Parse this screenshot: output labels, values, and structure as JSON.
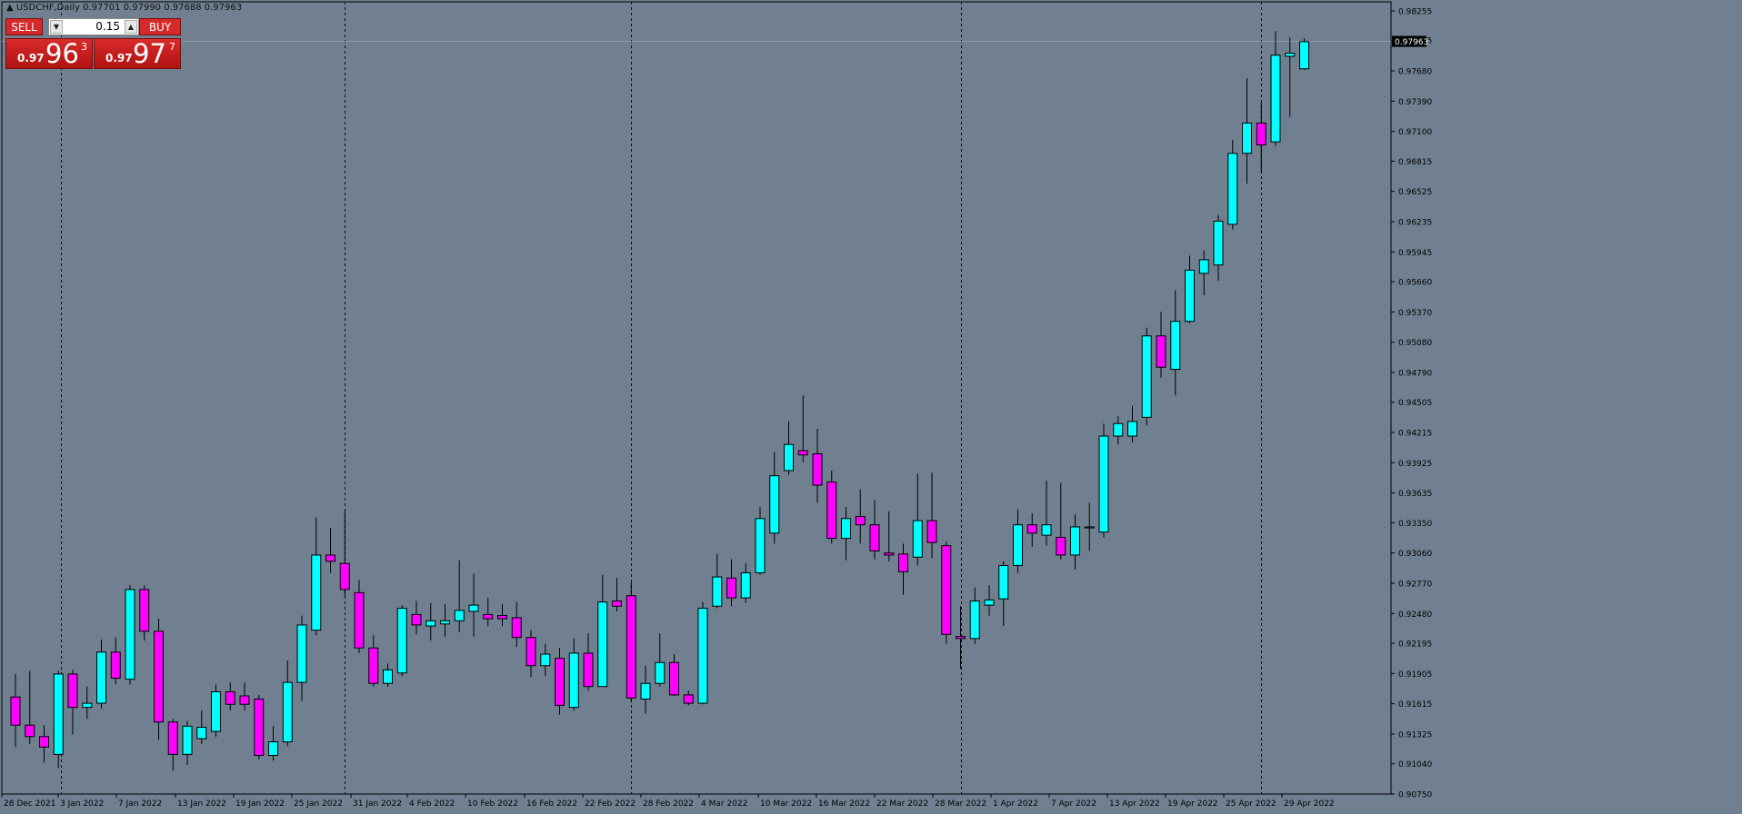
{
  "symbol_header": "USDCHF,Daily  0.97701 0.97990 0.97688 0.97963",
  "trade_panel": {
    "sell_label": "SELL",
    "buy_label": "BUY",
    "lot_value": "0.15",
    "sell_price": {
      "small": "0.97",
      "big": "96",
      "sup": "3"
    },
    "buy_price": {
      "small": "0.97",
      "big": "97",
      "sup": "7"
    }
  },
  "colors": {
    "background": "#708090",
    "bull_candle": "#00ffff",
    "bear_candle": "#ff00ff",
    "wick": "#000000",
    "current_price_label_bg": "#000000"
  },
  "chart_data": {
    "type": "candlestick",
    "ylim": [
      0.9075,
      0.98255
    ],
    "y_ticks": [
      "0.98255",
      "0.97975",
      "0.97680",
      "0.97390",
      "0.97100",
      "0.96815",
      "0.96525",
      "0.96235",
      "0.95945",
      "0.95660",
      "0.95370",
      "0.95080",
      "0.94790",
      "0.94505",
      "0.94215",
      "0.93925",
      "0.93635",
      "0.93350",
      "0.93060",
      "0.92770",
      "0.92480",
      "0.92195",
      "0.91905",
      "0.91615",
      "0.91325",
      "0.91040",
      "0.90750"
    ],
    "current_price": "0.97963",
    "x_labels": [
      "28 Dec 2021",
      "3 Jan 2022",
      "7 Jan 2022",
      "13 Jan 2022",
      "19 Jan 2022",
      "25 Jan 2022",
      "31 Jan 2022",
      "4 Feb 2022",
      "10 Feb 2022",
      "16 Feb 2022",
      "22 Feb 2022",
      "28 Feb 2022",
      "4 Mar 2022",
      "10 Mar 2022",
      "16 Mar 2022",
      "22 Mar 2022",
      "28 Mar 2022",
      "1 Apr 2022",
      "7 Apr 2022",
      "13 Apr 2022",
      "19 Apr 2022",
      "25 Apr 2022",
      "29 Apr 2022"
    ],
    "period_separators": [
      "3 Jan 2022",
      "31 Jan 2022",
      "28 Feb 2022",
      "1 Apr 2022",
      "29 Apr 2022"
    ],
    "candles": [
      {
        "o": 0.9168,
        "h": 0.919,
        "l": 0.912,
        "c": 0.9141
      },
      {
        "o": 0.9141,
        "h": 0.9193,
        "l": 0.9123,
        "c": 0.913
      },
      {
        "o": 0.913,
        "h": 0.9141,
        "l": 0.9105,
        "c": 0.912
      },
      {
        "o": 0.9113,
        "h": 0.9193,
        "l": 0.91,
        "c": 0.919
      },
      {
        "o": 0.919,
        "h": 0.9194,
        "l": 0.9132,
        "c": 0.9158
      },
      {
        "o": 0.9158,
        "h": 0.9178,
        "l": 0.9147,
        "c": 0.9162
      },
      {
        "o": 0.9162,
        "h": 0.9223,
        "l": 0.9157,
        "c": 0.9211
      },
      {
        "o": 0.9211,
        "h": 0.9225,
        "l": 0.918,
        "c": 0.9186
      },
      {
        "o": 0.9185,
        "h": 0.9275,
        "l": 0.918,
        "c": 0.9271
      },
      {
        "o": 0.9271,
        "h": 0.9275,
        "l": 0.9222,
        "c": 0.9231
      },
      {
        "o": 0.9231,
        "h": 0.9243,
        "l": 0.9127,
        "c": 0.9144
      },
      {
        "o": 0.9144,
        "h": 0.9147,
        "l": 0.9097,
        "c": 0.9113
      },
      {
        "o": 0.9113,
        "h": 0.9145,
        "l": 0.9103,
        "c": 0.914
      },
      {
        "o": 0.9128,
        "h": 0.9155,
        "l": 0.9123,
        "c": 0.9139
      },
      {
        "o": 0.9135,
        "h": 0.918,
        "l": 0.913,
        "c": 0.9173
      },
      {
        "o": 0.9173,
        "h": 0.9182,
        "l": 0.9155,
        "c": 0.9161
      },
      {
        "o": 0.9169,
        "h": 0.9182,
        "l": 0.9155,
        "c": 0.9161
      },
      {
        "o": 0.9166,
        "h": 0.917,
        "l": 0.9108,
        "c": 0.9112
      },
      {
        "o": 0.9112,
        "h": 0.914,
        "l": 0.9107,
        "c": 0.9125
      },
      {
        "o": 0.9125,
        "h": 0.9203,
        "l": 0.9121,
        "c": 0.9182
      },
      {
        "o": 0.9182,
        "h": 0.9246,
        "l": 0.9164,
        "c": 0.9237
      },
      {
        "o": 0.9232,
        "h": 0.934,
        "l": 0.9227,
        "c": 0.9304
      },
      {
        "o": 0.9304,
        "h": 0.933,
        "l": 0.9287,
        "c": 0.9298
      },
      {
        "o": 0.9296,
        "h": 0.9346,
        "l": 0.9264,
        "c": 0.9271
      },
      {
        "o": 0.9268,
        "h": 0.928,
        "l": 0.921,
        "c": 0.9215
      },
      {
        "o": 0.9215,
        "h": 0.9227,
        "l": 0.9178,
        "c": 0.9181
      },
      {
        "o": 0.9181,
        "h": 0.92,
        "l": 0.9178,
        "c": 0.9194
      },
      {
        "o": 0.9191,
        "h": 0.9256,
        "l": 0.9188,
        "c": 0.9253
      },
      {
        "o": 0.9247,
        "h": 0.926,
        "l": 0.9228,
        "c": 0.9237
      },
      {
        "o": 0.9236,
        "h": 0.9258,
        "l": 0.9222,
        "c": 0.9241
      },
      {
        "o": 0.9238,
        "h": 0.9257,
        "l": 0.9226,
        "c": 0.9241
      },
      {
        "o": 0.9241,
        "h": 0.9299,
        "l": 0.923,
        "c": 0.9251
      },
      {
        "o": 0.925,
        "h": 0.9286,
        "l": 0.9226,
        "c": 0.9256
      },
      {
        "o": 0.9247,
        "h": 0.9263,
        "l": 0.9236,
        "c": 0.9243
      },
      {
        "o": 0.9246,
        "h": 0.9257,
        "l": 0.9236,
        "c": 0.9243
      },
      {
        "o": 0.9244,
        "h": 0.9259,
        "l": 0.9216,
        "c": 0.9225
      },
      {
        "o": 0.9225,
        "h": 0.9232,
        "l": 0.9187,
        "c": 0.9198
      },
      {
        "o": 0.9198,
        "h": 0.9219,
        "l": 0.9188,
        "c": 0.9209
      },
      {
        "o": 0.9205,
        "h": 0.9215,
        "l": 0.9151,
        "c": 0.916
      },
      {
        "o": 0.9158,
        "h": 0.9224,
        "l": 0.9155,
        "c": 0.921
      },
      {
        "o": 0.921,
        "h": 0.9229,
        "l": 0.9174,
        "c": 0.9178
      },
      {
        "o": 0.9178,
        "h": 0.9285,
        "l": 0.9178,
        "c": 0.9259
      },
      {
        "o": 0.926,
        "h": 0.9282,
        "l": 0.925,
        "c": 0.9255
      },
      {
        "o": 0.9265,
        "h": 0.9278,
        "l": 0.9163,
        "c": 0.9167
      },
      {
        "o": 0.9166,
        "h": 0.9198,
        "l": 0.9152,
        "c": 0.9181
      },
      {
        "o": 0.9181,
        "h": 0.9229,
        "l": 0.9178,
        "c": 0.9201
      },
      {
        "o": 0.9201,
        "h": 0.9209,
        "l": 0.9169,
        "c": 0.917
      },
      {
        "o": 0.917,
        "h": 0.9174,
        "l": 0.916,
        "c": 0.9162
      },
      {
        "o": 0.9162,
        "h": 0.9259,
        "l": 0.9161,
        "c": 0.9253
      },
      {
        "o": 0.9255,
        "h": 0.9305,
        "l": 0.9253,
        "c": 0.9283
      },
      {
        "o": 0.9282,
        "h": 0.93,
        "l": 0.9255,
        "c": 0.9263
      },
      {
        "o": 0.9263,
        "h": 0.9296,
        "l": 0.9258,
        "c": 0.9287
      },
      {
        "o": 0.9287,
        "h": 0.935,
        "l": 0.9285,
        "c": 0.9339
      },
      {
        "o": 0.9325,
        "h": 0.9403,
        "l": 0.9315,
        "c": 0.938
      },
      {
        "o": 0.9385,
        "h": 0.9432,
        "l": 0.9381,
        "c": 0.941
      },
      {
        "o": 0.9404,
        "h": 0.9457,
        "l": 0.9393,
        "c": 0.94
      },
      {
        "o": 0.9401,
        "h": 0.9425,
        "l": 0.9354,
        "c": 0.9371
      },
      {
        "o": 0.9374,
        "h": 0.9385,
        "l": 0.9315,
        "c": 0.932
      },
      {
        "o": 0.932,
        "h": 0.935,
        "l": 0.9299,
        "c": 0.9339
      },
      {
        "o": 0.9341,
        "h": 0.9367,
        "l": 0.9315,
        "c": 0.9333
      },
      {
        "o": 0.9333,
        "h": 0.9357,
        "l": 0.93,
        "c": 0.9308
      },
      {
        "o": 0.9306,
        "h": 0.9346,
        "l": 0.9298,
        "c": 0.9304
      },
      {
        "o": 0.9305,
        "h": 0.9315,
        "l": 0.9266,
        "c": 0.9288
      },
      {
        "o": 0.9302,
        "h": 0.9382,
        "l": 0.9294,
        "c": 0.9337
      },
      {
        "o": 0.9337,
        "h": 0.9383,
        "l": 0.9301,
        "c": 0.9316
      },
      {
        "o": 0.9313,
        "h": 0.9317,
        "l": 0.9219,
        "c": 0.9228
      },
      {
        "o": 0.9226,
        "h": 0.9255,
        "l": 0.9195,
        "c": 0.9224
      },
      {
        "o": 0.9224,
        "h": 0.9273,
        "l": 0.9219,
        "c": 0.926
      },
      {
        "o": 0.9256,
        "h": 0.9275,
        "l": 0.9246,
        "c": 0.9261
      },
      {
        "o": 0.9262,
        "h": 0.9298,
        "l": 0.9236,
        "c": 0.9294
      },
      {
        "o": 0.9294,
        "h": 0.9348,
        "l": 0.9287,
        "c": 0.9333
      },
      {
        "o": 0.9333,
        "h": 0.9344,
        "l": 0.9312,
        "c": 0.9325
      },
      {
        "o": 0.9323,
        "h": 0.9375,
        "l": 0.9313,
        "c": 0.9333
      },
      {
        "o": 0.9321,
        "h": 0.9373,
        "l": 0.93,
        "c": 0.9304
      },
      {
        "o": 0.9304,
        "h": 0.9343,
        "l": 0.929,
        "c": 0.9331
      },
      {
        "o": 0.933,
        "h": 0.9354,
        "l": 0.9308,
        "c": 0.9331
      },
      {
        "o": 0.9326,
        "h": 0.943,
        "l": 0.9321,
        "c": 0.9418
      },
      {
        "o": 0.9418,
        "h": 0.9437,
        "l": 0.941,
        "c": 0.943
      },
      {
        "o": 0.9418,
        "h": 0.9447,
        "l": 0.9412,
        "c": 0.9432
      },
      {
        "o": 0.9436,
        "h": 0.9522,
        "l": 0.9428,
        "c": 0.9514
      },
      {
        "o": 0.9514,
        "h": 0.9537,
        "l": 0.9474,
        "c": 0.9484
      },
      {
        "o": 0.9482,
        "h": 0.9558,
        "l": 0.9457,
        "c": 0.9528
      },
      {
        "o": 0.9528,
        "h": 0.9591,
        "l": 0.9526,
        "c": 0.9577
      },
      {
        "o": 0.9574,
        "h": 0.9596,
        "l": 0.9553,
        "c": 0.9587
      },
      {
        "o": 0.9582,
        "h": 0.963,
        "l": 0.9567,
        "c": 0.9624
      },
      {
        "o": 0.9621,
        "h": 0.9702,
        "l": 0.9616,
        "c": 0.9689
      },
      {
        "o": 0.9689,
        "h": 0.9761,
        "l": 0.966,
        "c": 0.9718
      },
      {
        "o": 0.9718,
        "h": 0.9738,
        "l": 0.9671,
        "c": 0.9697
      },
      {
        "o": 0.97,
        "h": 0.9806,
        "l": 0.9696,
        "c": 0.9783
      },
      {
        "o": 0.9782,
        "h": 0.98,
        "l": 0.9724,
        "c": 0.9785
      },
      {
        "o": 0.977,
        "h": 0.9799,
        "l": 0.9769,
        "c": 0.9796
      }
    ]
  }
}
